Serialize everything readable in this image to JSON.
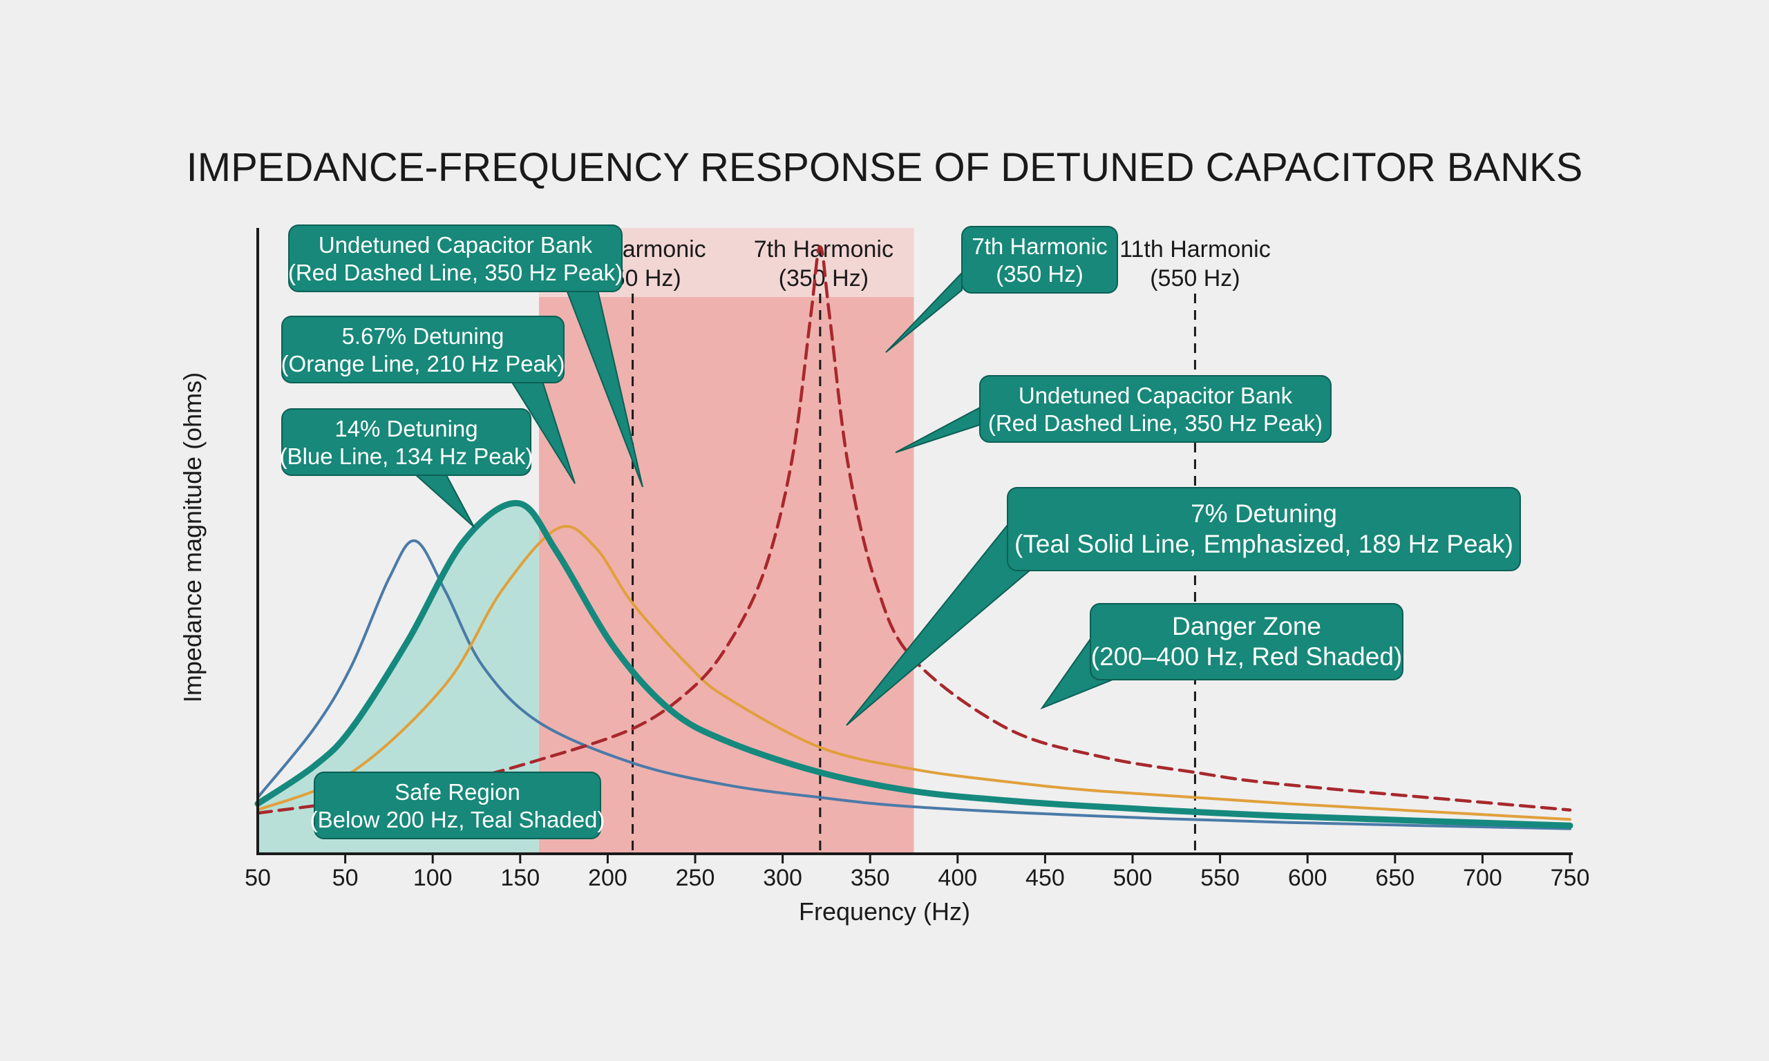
{
  "colors": {
    "background": "#efefef",
    "teal": "#16897e",
    "teal_fill": "#b9e0d8",
    "blue": "#4a7aa8",
    "orange": "#e0a03c",
    "red": "#a8282c",
    "danger_fill": "#efb1ae",
    "danger_band": "#f2d6d4",
    "callout_bg": "#178879",
    "callout_border": "#0d5f55",
    "text": "#1a1a1a"
  },
  "chart_data": {
    "type": "line",
    "title": "IMPEDANCE-FREQUENCY RESPONSE OF DETUNED CAPACITOR BANKS",
    "xlabel": "Frequency (Hz)",
    "ylabel": "Impedance magnitude (ohms)",
    "xlim": [
      50,
      750
    ],
    "x_tick_positions": [
      50,
      100,
      150,
      200,
      250,
      300,
      350,
      400,
      450,
      500,
      550,
      600,
      650,
      700,
      750
    ],
    "x_tick_labels": [
      "50",
      "100",
      "150",
      "200",
      "250",
      "300",
      "350",
      "400",
      "450",
      "500",
      "550",
      "600",
      "650",
      "700",
      "750"
    ],
    "x_axis_origin_label": "50",
    "y_tick_labels": [],
    "grid": false,
    "series": [
      {
        "key": "blue",
        "color": "#4a7aa8",
        "style": "solid",
        "emphasized": false,
        "peak_hz": 134,
        "x": [
          50,
          80,
          100,
          120,
          134,
          150,
          170,
          200,
          250,
          300,
          350,
          400,
          500,
          600,
          750
        ],
        "y": [
          0.09,
          0.2,
          0.3,
          0.44,
          0.5,
          0.42,
          0.3,
          0.21,
          0.145,
          0.11,
          0.09,
          0.075,
          0.06,
          0.05,
          0.04
        ]
      },
      {
        "key": "teal",
        "color": "#16897e",
        "style": "solid",
        "emphasized": true,
        "peak_hz": 189,
        "x": [
          50,
          80,
          100,
          130,
          160,
          189,
          210,
          240,
          270,
          300,
          350,
          400,
          450,
          500,
          600,
          750
        ],
        "y": [
          0.08,
          0.14,
          0.2,
          0.34,
          0.5,
          0.56,
          0.48,
          0.33,
          0.23,
          0.18,
          0.13,
          0.1,
          0.085,
          0.075,
          0.06,
          0.045
        ]
      },
      {
        "key": "orange",
        "color": "#e0a03c",
        "style": "solid",
        "emphasized": false,
        "peak_hz": 210,
        "x": [
          50,
          100,
          150,
          180,
          210,
          230,
          250,
          280,
          300,
          350,
          400,
          450,
          500,
          600,
          750
        ],
        "y": [
          0.07,
          0.13,
          0.27,
          0.42,
          0.52,
          0.49,
          0.4,
          0.3,
          0.25,
          0.17,
          0.135,
          0.115,
          0.1,
          0.08,
          0.055
        ]
      },
      {
        "key": "red",
        "color": "#a8282c",
        "style": "dashed",
        "emphasized": false,
        "peak_hz": 350,
        "x": [
          50,
          100,
          150,
          200,
          250,
          280,
          300,
          320,
          335,
          345,
          350,
          355,
          365,
          380,
          400,
          450,
          500,
          550,
          600,
          750
        ],
        "y": [
          0.065,
          0.085,
          0.11,
          0.15,
          0.2,
          0.26,
          0.33,
          0.45,
          0.63,
          0.86,
          0.97,
          0.86,
          0.62,
          0.43,
          0.31,
          0.2,
          0.155,
          0.13,
          0.11,
          0.07
        ]
      }
    ],
    "regions": [
      {
        "key": "safe",
        "x_from": 50,
        "x_to": 200,
        "color": "#b9e0d8"
      },
      {
        "key": "danger",
        "x_from": 200,
        "x_to": 400,
        "color": "#efb1ae"
      }
    ],
    "harmonic_lines": [
      {
        "x": 250,
        "lines": [
          "5th Harmonic",
          "(250 Hz)"
        ]
      },
      {
        "x": 350,
        "lines": [
          "7th Harmonic",
          "(350 Hz)"
        ]
      },
      {
        "x": 550,
        "lines": [
          "11th Harmonic",
          "(550 Hz)"
        ]
      }
    ],
    "callouts": [
      {
        "key": "undetuned-top",
        "lines": [
          "Undetuned Capacitor Bank",
          "(Red Dashed Line, 350 Hz Peak)"
        ],
        "series": "red"
      },
      {
        "key": "orange",
        "lines": [
          "5.67% Detuning",
          "(Orange Line, 210 Hz Peak)"
        ],
        "series": "teal"
      },
      {
        "key": "blue",
        "lines": [
          "14% Detuning",
          "(Blue Line, 134 Hz Peak)"
        ],
        "series": "blue"
      },
      {
        "key": "seventh",
        "lines": [
          "7th Harmonic",
          "(350 Hz)"
        ],
        "series": "red"
      },
      {
        "key": "undetuned-right",
        "lines": [
          "Undetuned Capacitor Bank",
          "(Red Dashed Line, 350 Hz Peak)"
        ],
        "series": "red"
      },
      {
        "key": "teal",
        "lines": [
          "7% Detuning",
          "(Teal Solid Line, Emphasized, 189 Hz Peak)"
        ],
        "series": "teal"
      },
      {
        "key": "danger",
        "lines": [
          "Danger Zone",
          "(200–400 Hz, Red Shaded)"
        ],
        "series": "danger"
      },
      {
        "key": "safe",
        "lines": [
          "Safe Region",
          "(Below 200 Hz, Teal Shaded)"
        ],
        "series": "safe"
      }
    ]
  }
}
